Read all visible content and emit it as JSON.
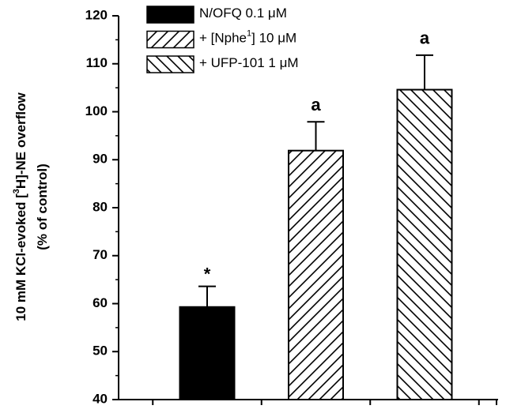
{
  "chart_data": {
    "type": "bar",
    "ylabel": [
      [
        "10 mM KCl-evoked [",
        "3",
        "H]-NE overflow"
      ],
      [
        "(% of control)"
      ]
    ],
    "series": [
      {
        "name": [
          "N/OFQ 0.1 μM"
        ],
        "color": "#000000",
        "hatch": "solid",
        "values": [
          59.3
        ],
        "errors": [
          4.3
        ],
        "annotation": "*"
      },
      {
        "name": [
          "+ [Nphe",
          "1",
          "] 10 μM"
        ],
        "color": "#000000",
        "hatch": "forward",
        "values": [
          91.9
        ],
        "errors": [
          6.0
        ],
        "annotation": "a"
      },
      {
        "name": [
          "+ UFP-101 1 μM"
        ],
        "color": "#000000",
        "hatch": "backward",
        "values": [
          104.6
        ],
        "errors": [
          7.2
        ],
        "annotation": "a"
      }
    ],
    "ylim": [
      40,
      120
    ],
    "yticks": [
      40,
      50,
      60,
      70,
      80,
      90,
      100,
      110,
      120
    ],
    "yminorticks": [
      45,
      55,
      65,
      75,
      85,
      95,
      105,
      115
    ]
  }
}
